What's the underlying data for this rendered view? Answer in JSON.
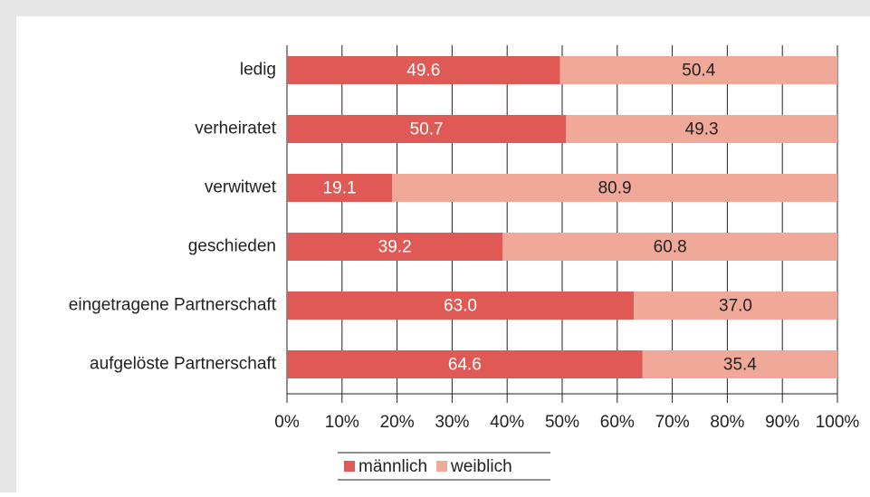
{
  "chart_data": {
    "type": "stacked-bar-horizontal",
    "categories": [
      "ledig",
      "verheiratet",
      "verwitwet",
      "geschieden",
      "eingetragene Partnerschaft",
      "aufgelöste Partnerschaft"
    ],
    "series": [
      {
        "name": "männlich",
        "color": "#e05a55",
        "values": [
          49.6,
          50.7,
          19.1,
          39.2,
          63.0,
          64.6
        ],
        "value_labels": [
          "49.6",
          "50.7",
          "19.1",
          "39.2",
          "63.0",
          "64.6"
        ]
      },
      {
        "name": "weiblich",
        "color": "#f0a898",
        "values": [
          50.4,
          49.3,
          80.9,
          60.8,
          37.0,
          35.4
        ],
        "value_labels": [
          "50.4",
          "49.3",
          "80.9",
          "60.8",
          "37.0",
          "35.4"
        ]
      }
    ],
    "xlim": [
      0,
      100
    ],
    "xticks": [
      {
        "value": 0,
        "label": "0%"
      },
      {
        "value": 10,
        "label": "10%"
      },
      {
        "value": 20,
        "label": "20%"
      },
      {
        "value": 30,
        "label": "30%"
      },
      {
        "value": 40,
        "label": "40%"
      },
      {
        "value": 50,
        "label": "50%"
      },
      {
        "value": 60,
        "label": "60%"
      },
      {
        "value": 70,
        "label": "70%"
      },
      {
        "value": 80,
        "label": "80%"
      },
      {
        "value": 90,
        "label": "90%"
      },
      {
        "value": 100,
        "label": "100%"
      }
    ],
    "grid": true,
    "legend": "bottom"
  }
}
